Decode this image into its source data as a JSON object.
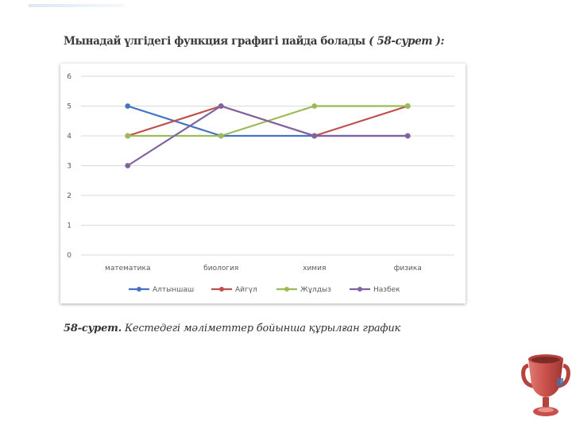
{
  "heading": {
    "text": "Мынадай үлгідегі функция графигі пайда болады",
    "ref": "( 58-сурет ):"
  },
  "caption": {
    "label": "58-сурет.",
    "text": "Кестедегі мәліметтер бойынша құрылған график"
  },
  "chart_data": {
    "type": "line",
    "title": "",
    "xlabel": "",
    "ylabel": "",
    "categories": [
      "математика",
      "биология",
      "химия",
      "физика"
    ],
    "ylim": [
      0,
      6
    ],
    "yticks": [
      "0",
      "1",
      "2",
      "3",
      "4",
      "5",
      "6"
    ],
    "grid": true,
    "legend_position": "bottom",
    "series": [
      {
        "name": "Алтыншаш",
        "color": "#4472c4",
        "values": [
          5,
          4,
          4,
          4
        ]
      },
      {
        "name": "Айгүл",
        "color": "#c0504d",
        "values": [
          4,
          5,
          4,
          5
        ]
      },
      {
        "name": "Жұлдыз",
        "color": "#9bbb59",
        "values": [
          4,
          4,
          5,
          5
        ]
      },
      {
        "name": "Назбек",
        "color": "#8064a2",
        "values": [
          3,
          5,
          4,
          4
        ]
      }
    ]
  },
  "decoration": {
    "trophy_icon": "trophy-icon",
    "trophy_color": "#c0504d"
  }
}
